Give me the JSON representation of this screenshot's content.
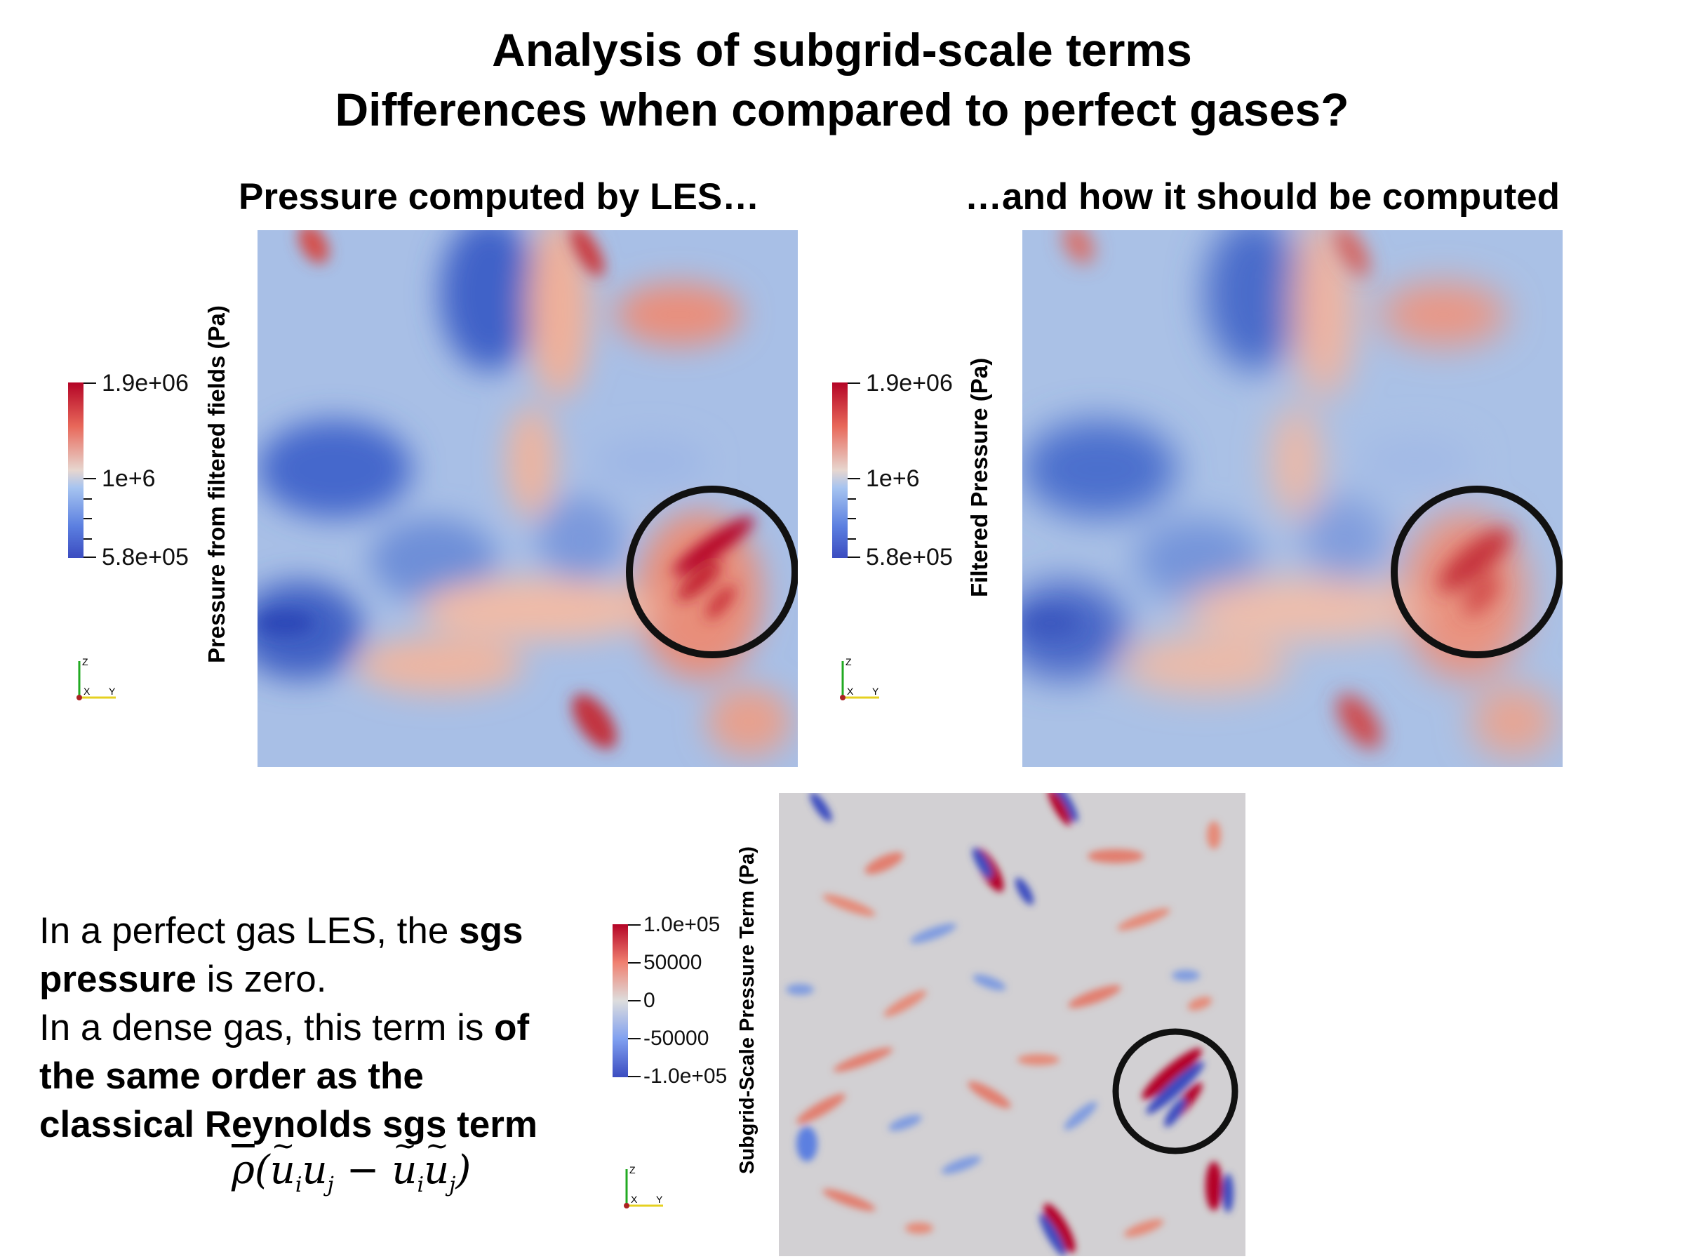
{
  "title": {
    "line1": "Analysis of subgrid-scale terms",
    "line2": "Differences when compared to perfect gases?"
  },
  "panels": {
    "left": {
      "caption": "Pressure computed by LES…",
      "colorbar_title": "Pressure from filtered fields (Pa)",
      "ticks": [
        "1.9e+06",
        "1e+6",
        "5.8e+05"
      ]
    },
    "right": {
      "caption": "…and how it should be computed",
      "colorbar_title": "Filtered Pressure (Pa)",
      "ticks": [
        "1.9e+06",
        "1e+6",
        "5.8e+05"
      ]
    },
    "bottom": {
      "colorbar_title": "Subgrid-Scale Pressure Term (Pa)",
      "ticks": [
        "1.0e+05",
        "50000",
        "0",
        "-50000",
        "-1.0e+05"
      ]
    }
  },
  "axes_labels": {
    "z": "Z",
    "x": "X",
    "y": "Y"
  },
  "body": {
    "t1": "In a perfect gas LES, the ",
    "t2": "sgs",
    "t3": "pressure",
    "t4": " is zero.",
    "t5": "In a dense gas, this term is ",
    "t6": "of",
    "t7": "the same order as the",
    "t8": "classical Reynolds sgs term"
  },
  "formula": {
    "rho": "ρ",
    "open": "(",
    "u1": "u",
    "i": "i",
    "u2": "u",
    "j": "j",
    "minus": " − ",
    "close": ")"
  },
  "colors": {
    "cold": "#3b4cc0",
    "neutral": "#dddddd",
    "warm": "#b40426",
    "circle": "#111111"
  }
}
